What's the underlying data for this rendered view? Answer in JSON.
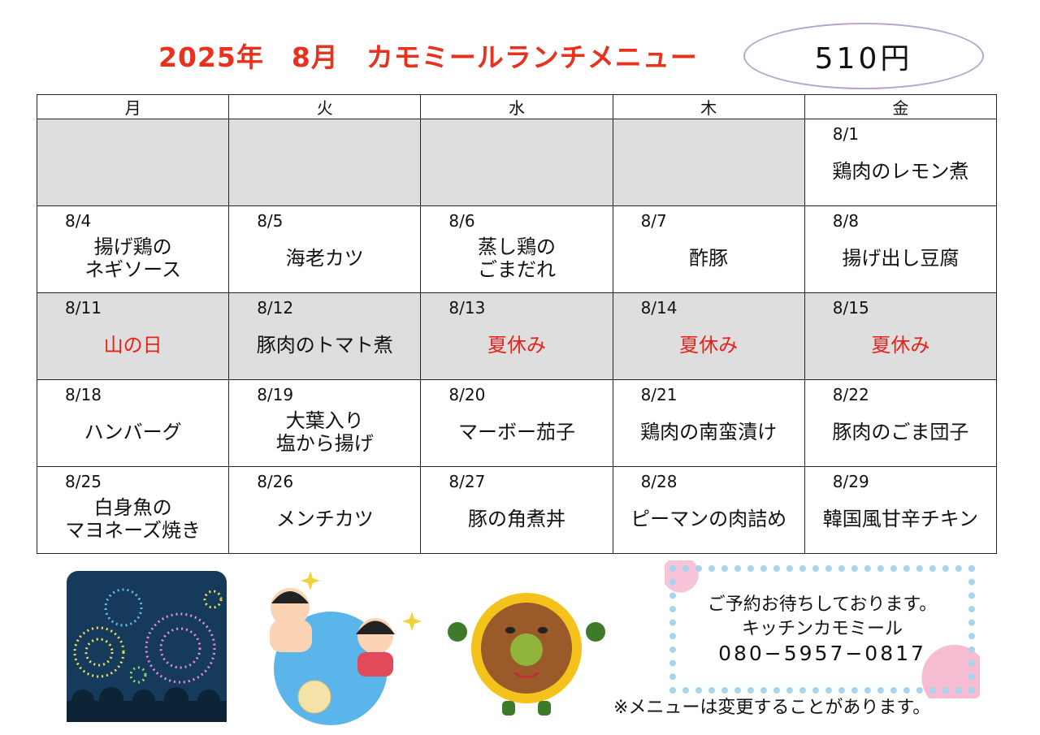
{
  "title": "2025年　8月　カモミールランチメニュー",
  "price": "510円",
  "weekdays": [
    "月",
    "火",
    "水",
    "木",
    "金"
  ],
  "colors": {
    "title": "#e8321e",
    "holiday": "#e8221a",
    "closed_bg": "#dedede"
  },
  "weeks": [
    {
      "gray": true,
      "days": [
        {
          "date": "",
          "menu": "",
          "gray": true
        },
        {
          "date": "",
          "menu": "",
          "gray": true
        },
        {
          "date": "",
          "menu": "",
          "gray": true
        },
        {
          "date": "",
          "menu": "",
          "gray": true
        },
        {
          "date": "8/1",
          "menu": "鶏肉のレモン煮",
          "gray": false
        }
      ]
    },
    {
      "gray": false,
      "days": [
        {
          "date": "8/4",
          "menu": "揚げ鶏の\nネギソース"
        },
        {
          "date": "8/5",
          "menu": "海老カツ"
        },
        {
          "date": "8/6",
          "menu": "蒸し鶏の\nごまだれ"
        },
        {
          "date": "8/7",
          "menu": "酢豚"
        },
        {
          "date": "8/8",
          "menu": "揚げ出し豆腐"
        }
      ]
    },
    {
      "gray": true,
      "days": [
        {
          "date": "8/11",
          "menu": "山の日",
          "red": true
        },
        {
          "date": "8/12",
          "menu": "豚肉のトマト煮"
        },
        {
          "date": "8/13",
          "menu": "夏休み",
          "red": true
        },
        {
          "date": "8/14",
          "menu": "夏休み",
          "red": true
        },
        {
          "date": "8/15",
          "menu": "夏休み",
          "red": true
        }
      ]
    },
    {
      "gray": false,
      "days": [
        {
          "date": "8/18",
          "menu": "ハンバーグ"
        },
        {
          "date": "8/19",
          "menu": "大葉入り\n塩から揚げ"
        },
        {
          "date": "8/20",
          "menu": "マーボー茄子"
        },
        {
          "date": "8/21",
          "menu": "鶏肉の南蛮漬け"
        },
        {
          "date": "8/22",
          "menu": "豚肉のごま団子"
        }
      ]
    },
    {
      "gray": false,
      "days": [
        {
          "date": "8/25",
          "menu": "白身魚の\nマヨネーズ焼き"
        },
        {
          "date": "8/26",
          "menu": "メンチカツ"
        },
        {
          "date": "8/27",
          "menu": "豚の角煮丼"
        },
        {
          "date": "8/28",
          "menu": "ピーマンの肉詰め"
        },
        {
          "date": "8/29",
          "menu": "韓国風甘辛チキン"
        }
      ]
    }
  ],
  "message": {
    "line1": "ご予約お待ちしております。",
    "line2": "キッチンカモミール",
    "phone": "080−5957−0817"
  },
  "note": "※メニューは変更することがあります。",
  "illustrations": [
    "fireworks-illustration",
    "pool-kids-illustration",
    "sunflower-character-illustration",
    "hydrangea-frame"
  ]
}
